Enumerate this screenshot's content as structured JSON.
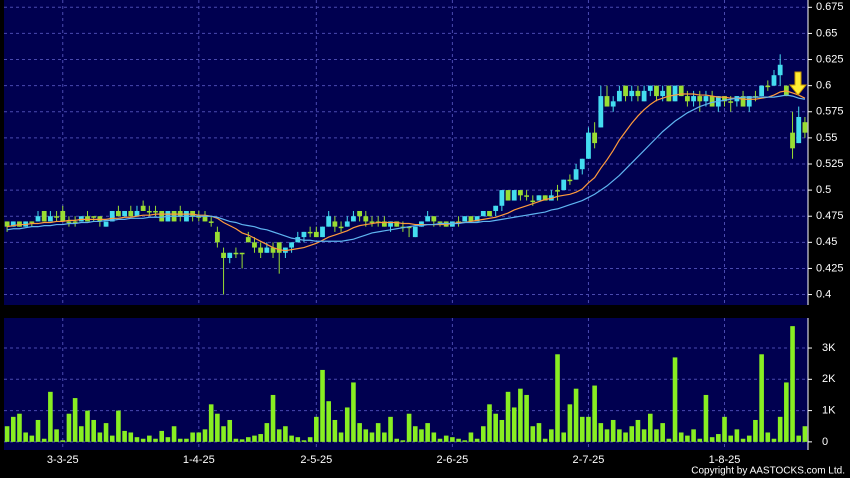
{
  "chart_data": {
    "type": "candlestick",
    "categories": [
      null,
      null,
      null,
      null,
      null,
      null,
      null,
      null,
      null,
      "3-3-25",
      null,
      null,
      null,
      null,
      null,
      null,
      null,
      null,
      null,
      null,
      null,
      null,
      null,
      null,
      null,
      null,
      null,
      null,
      null,
      null,
      null,
      "1-4-25",
      null,
      null,
      null,
      null,
      null,
      null,
      null,
      null,
      null,
      null,
      null,
      null,
      null,
      null,
      null,
      null,
      null,
      null,
      "2-5-25",
      null,
      null,
      null,
      null,
      null,
      null,
      null,
      null,
      null,
      null,
      null,
      null,
      null,
      null,
      null,
      null,
      null,
      null,
      null,
      null,
      null,
      "2-6-25",
      null,
      null,
      null,
      null,
      null,
      null,
      null,
      null,
      null,
      null,
      null,
      null,
      null,
      null,
      null,
      null,
      null,
      null,
      null,
      null,
      null,
      "2-7-25",
      null,
      null,
      null,
      null,
      null,
      null,
      null,
      null,
      null,
      null,
      null,
      null,
      null,
      null,
      null,
      null,
      null,
      null,
      null,
      null,
      null,
      "1-8-25",
      null,
      null,
      null,
      null,
      null,
      null,
      null,
      null,
      null,
      null,
      null,
      null,
      null
    ],
    "ohlc": [
      [
        0.47,
        0.47,
        0.46,
        0.465
      ],
      [
        0.465,
        0.47,
        0.465,
        0.47
      ],
      [
        0.47,
        0.47,
        0.465,
        0.465
      ],
      [
        0.465,
        0.47,
        0.465,
        0.47
      ],
      [
        0.47,
        0.47,
        0.465,
        0.47
      ],
      [
        0.47,
        0.48,
        0.47,
        0.475
      ],
      [
        0.48,
        0.48,
        0.47,
        0.47
      ],
      [
        0.47,
        0.48,
        0.47,
        0.475
      ],
      [
        0.475,
        0.48,
        0.47,
        0.475
      ],
      [
        0.48,
        0.485,
        0.47,
        0.47
      ],
      [
        0.47,
        0.475,
        0.465,
        0.47
      ],
      [
        0.47,
        0.475,
        0.465,
        0.47
      ],
      [
        0.47,
        0.475,
        0.47,
        0.475
      ],
      [
        0.475,
        0.48,
        0.47,
        0.47
      ],
      [
        0.475,
        0.475,
        0.47,
        0.475
      ],
      [
        0.475,
        0.475,
        0.465,
        0.47
      ],
      [
        0.465,
        0.47,
        0.465,
        0.47
      ],
      [
        0.47,
        0.48,
        0.47,
        0.48
      ],
      [
        0.48,
        0.485,
        0.475,
        0.475
      ],
      [
        0.475,
        0.48,
        0.475,
        0.48
      ],
      [
        0.48,
        0.485,
        0.475,
        0.475
      ],
      [
        0.475,
        0.485,
        0.475,
        0.48
      ],
      [
        0.485,
        0.49,
        0.48,
        0.48
      ],
      [
        0.48,
        0.485,
        0.475,
        0.48
      ],
      [
        0.48,
        0.485,
        0.475,
        0.48
      ],
      [
        0.48,
        0.48,
        0.47,
        0.47
      ],
      [
        0.47,
        0.48,
        0.47,
        0.48
      ],
      [
        0.48,
        0.48,
        0.47,
        0.47
      ],
      [
        0.48,
        0.485,
        0.47,
        0.475
      ],
      [
        0.47,
        0.48,
        0.47,
        0.48
      ],
      [
        0.48,
        0.48,
        0.47,
        0.475
      ],
      [
        0.475,
        0.48,
        0.47,
        0.475
      ],
      [
        0.475,
        0.48,
        0.47,
        0.47
      ],
      [
        0.47,
        0.475,
        0.465,
        0.47
      ],
      [
        0.46,
        0.465,
        0.445,
        0.45
      ],
      [
        0.44,
        0.445,
        0.4,
        0.435
      ],
      [
        0.435,
        0.44,
        0.43,
        0.44
      ],
      [
        0.44,
        0.445,
        0.435,
        0.44
      ],
      [
        0.44,
        0.44,
        0.425,
        0.44
      ],
      [
        0.455,
        0.46,
        0.45,
        0.45
      ],
      [
        0.45,
        0.455,
        0.44,
        0.445
      ],
      [
        0.445,
        0.45,
        0.435,
        0.44
      ],
      [
        0.44,
        0.45,
        0.44,
        0.445
      ],
      [
        0.445,
        0.45,
        0.435,
        0.44
      ],
      [
        0.45,
        0.45,
        0.42,
        0.44
      ],
      [
        0.44,
        0.445,
        0.435,
        0.445
      ],
      [
        0.445,
        0.45,
        0.44,
        0.45
      ],
      [
        0.45,
        0.46,
        0.45,
        0.455
      ],
      [
        0.455,
        0.46,
        0.45,
        0.46
      ],
      [
        0.46,
        0.465,
        0.455,
        0.46
      ],
      [
        0.46,
        0.465,
        0.455,
        0.455
      ],
      [
        0.455,
        0.465,
        0.455,
        0.465
      ],
      [
        0.465,
        0.48,
        0.465,
        0.475
      ],
      [
        0.47,
        0.475,
        0.46,
        0.465
      ],
      [
        0.465,
        0.47,
        0.46,
        0.465
      ],
      [
        0.465,
        0.475,
        0.465,
        0.47
      ],
      [
        0.47,
        0.48,
        0.47,
        0.475
      ],
      [
        0.48,
        0.48,
        0.47,
        0.475
      ],
      [
        0.475,
        0.48,
        0.465,
        0.47
      ],
      [
        0.47,
        0.475,
        0.465,
        0.47
      ],
      [
        0.47,
        0.475,
        0.465,
        0.47
      ],
      [
        0.47,
        0.475,
        0.465,
        0.465
      ],
      [
        0.465,
        0.47,
        0.46,
        0.47
      ],
      [
        0.47,
        0.47,
        0.465,
        0.465
      ],
      [
        0.465,
        0.47,
        0.46,
        0.465
      ],
      [
        0.465,
        0.465,
        0.455,
        0.465
      ],
      [
        0.455,
        0.465,
        0.455,
        0.465
      ],
      [
        0.465,
        0.47,
        0.465,
        0.47
      ],
      [
        0.47,
        0.48,
        0.47,
        0.475
      ],
      [
        0.475,
        0.475,
        0.465,
        0.47
      ],
      [
        0.47,
        0.47,
        0.465,
        0.47
      ],
      [
        0.47,
        0.47,
        0.465,
        0.465
      ],
      [
        0.465,
        0.47,
        0.465,
        0.47
      ],
      [
        0.47,
        0.475,
        0.465,
        0.47
      ],
      [
        0.47,
        0.475,
        0.47,
        0.475
      ],
      [
        0.475,
        0.475,
        0.47,
        0.47
      ],
      [
        0.47,
        0.475,
        0.47,
        0.475
      ],
      [
        0.475,
        0.48,
        0.475,
        0.48
      ],
      [
        0.48,
        0.48,
        0.475,
        0.475
      ],
      [
        0.48,
        0.485,
        0.475,
        0.485
      ],
      [
        0.485,
        0.5,
        0.48,
        0.5
      ],
      [
        0.5,
        0.5,
        0.49,
        0.49
      ],
      [
        0.49,
        0.5,
        0.49,
        0.5
      ],
      [
        0.5,
        0.5,
        0.49,
        0.495
      ],
      [
        0.495,
        0.5,
        0.49,
        0.495
      ],
      [
        0.49,
        0.495,
        0.485,
        0.49
      ],
      [
        0.49,
        0.495,
        0.49,
        0.495
      ],
      [
        0.495,
        0.495,
        0.49,
        0.49
      ],
      [
        0.49,
        0.5,
        0.49,
        0.495
      ],
      [
        0.5,
        0.505,
        0.49,
        0.5
      ],
      [
        0.5,
        0.51,
        0.5,
        0.51
      ],
      [
        0.51,
        0.515,
        0.505,
        0.51
      ],
      [
        0.51,
        0.525,
        0.51,
        0.52
      ],
      [
        0.52,
        0.53,
        0.515,
        0.53
      ],
      [
        0.53,
        0.56,
        0.53,
        0.555
      ],
      [
        0.555,
        0.565,
        0.54,
        0.545
      ],
      [
        0.56,
        0.6,
        0.56,
        0.59
      ],
      [
        0.59,
        0.6,
        0.58,
        0.58
      ],
      [
        0.58,
        0.59,
        0.575,
        0.585
      ],
      [
        0.585,
        0.6,
        0.585,
        0.595
      ],
      [
        0.6,
        0.6,
        0.585,
        0.59
      ],
      [
        0.59,
        0.6,
        0.585,
        0.595
      ],
      [
        0.595,
        0.6,
        0.585,
        0.59
      ],
      [
        0.585,
        0.6,
        0.585,
        0.595
      ],
      [
        0.595,
        0.6,
        0.59,
        0.6
      ],
      [
        0.6,
        0.6,
        0.585,
        0.59
      ],
      [
        0.59,
        0.6,
        0.585,
        0.595
      ],
      [
        0.6,
        0.6,
        0.585,
        0.585
      ],
      [
        0.585,
        0.6,
        0.585,
        0.6
      ],
      [
        0.6,
        0.6,
        0.59,
        0.59
      ],
      [
        0.59,
        0.595,
        0.58,
        0.585
      ],
      [
        0.585,
        0.595,
        0.58,
        0.59
      ],
      [
        0.59,
        0.595,
        0.575,
        0.585
      ],
      [
        0.585,
        0.595,
        0.58,
        0.59
      ],
      [
        0.59,
        0.595,
        0.58,
        0.58
      ],
      [
        0.58,
        0.59,
        0.575,
        0.59
      ],
      [
        0.59,
        0.59,
        0.58,
        0.585
      ],
      [
        0.585,
        0.59,
        0.575,
        0.585
      ],
      [
        0.585,
        0.59,
        0.58,
        0.59
      ],
      [
        0.59,
        0.595,
        0.58,
        0.58
      ],
      [
        0.58,
        0.59,
        0.575,
        0.59
      ],
      [
        0.59,
        0.595,
        0.585,
        0.59
      ],
      [
        0.59,
        0.6,
        0.59,
        0.6
      ],
      [
        0.6,
        0.605,
        0.595,
        0.6
      ],
      [
        0.6,
        0.615,
        0.6,
        0.61
      ],
      [
        0.61,
        0.63,
        0.6,
        0.62
      ],
      [
        0.6,
        0.6,
        0.59,
        0.59
      ],
      [
        0.555,
        0.575,
        0.53,
        0.54
      ],
      [
        0.545,
        0.58,
        0.545,
        0.57
      ],
      [
        0.565,
        0.57,
        0.55,
        0.555
      ]
    ],
    "up_color": "#44ddf0",
    "down_color": "#99dd33",
    "ylim": [
      0.39,
      0.682
    ],
    "yticks": [
      0.4,
      0.425,
      0.45,
      0.475,
      0.5,
      0.525,
      0.55,
      0.575,
      0.6,
      0.625,
      0.65,
      0.675
    ],
    "grid": true,
    "lines": [
      {
        "color": "#ff9a3c",
        "values": [
          0.465,
          0.466,
          0.467,
          0.467,
          0.468,
          0.468,
          0.469,
          0.469,
          0.47,
          0.47,
          0.471,
          0.471,
          0.472,
          0.472,
          0.472,
          0.472,
          0.472,
          0.473,
          0.473,
          0.474,
          0.474,
          0.475,
          0.476,
          0.476,
          0.477,
          0.477,
          0.477,
          0.477,
          0.477,
          0.477,
          0.477,
          0.476,
          0.476,
          0.475,
          0.473,
          0.469,
          0.466,
          0.463,
          0.459,
          0.457,
          0.454,
          0.451,
          0.448,
          0.445,
          0.443,
          0.442,
          0.443,
          0.444,
          0.445,
          0.447,
          0.449,
          0.452,
          0.455,
          0.457,
          0.459,
          0.461,
          0.464,
          0.466,
          0.467,
          0.468,
          0.469,
          0.469,
          0.469,
          0.469,
          0.468,
          0.468,
          0.467,
          0.467,
          0.467,
          0.467,
          0.467,
          0.467,
          0.468,
          0.469,
          0.469,
          0.47,
          0.471,
          0.472,
          0.473,
          0.474,
          0.476,
          0.478,
          0.481,
          0.483,
          0.485,
          0.487,
          0.489,
          0.491,
          0.492,
          0.494,
          0.495,
          0.496,
          0.498,
          0.501,
          0.507,
          0.512,
          0.521,
          0.529,
          0.538,
          0.548,
          0.556,
          0.564,
          0.571,
          0.577,
          0.582,
          0.586,
          0.588,
          0.59,
          0.591,
          0.592,
          0.592,
          0.592,
          0.591,
          0.591,
          0.59,
          0.589,
          0.589,
          0.588,
          0.588,
          0.587,
          0.587,
          0.587,
          0.588,
          0.589,
          0.591,
          0.594,
          0.595,
          0.593,
          0.591,
          0.588
        ]
      },
      {
        "color": "#5fb4f0",
        "values": [
          0.462,
          0.463,
          0.463,
          0.464,
          0.465,
          0.465,
          0.466,
          0.466,
          0.467,
          0.467,
          0.468,
          0.468,
          0.469,
          0.469,
          0.47,
          0.47,
          0.471,
          0.471,
          0.472,
          0.472,
          0.473,
          0.473,
          0.473,
          0.474,
          0.474,
          0.474,
          0.475,
          0.475,
          0.475,
          0.475,
          0.475,
          0.475,
          0.475,
          0.475,
          0.474,
          0.472,
          0.47,
          0.469,
          0.467,
          0.466,
          0.465,
          0.463,
          0.462,
          0.46,
          0.458,
          0.456,
          0.454,
          0.453,
          0.452,
          0.452,
          0.451,
          0.451,
          0.451,
          0.451,
          0.451,
          0.452,
          0.453,
          0.455,
          0.457,
          0.459,
          0.46,
          0.461,
          0.462,
          0.463,
          0.464,
          0.465,
          0.466,
          0.466,
          0.467,
          0.467,
          0.468,
          0.468,
          0.468,
          0.468,
          0.469,
          0.469,
          0.469,
          0.47,
          0.47,
          0.471,
          0.472,
          0.473,
          0.474,
          0.475,
          0.476,
          0.477,
          0.478,
          0.479,
          0.481,
          0.482,
          0.484,
          0.486,
          0.488,
          0.49,
          0.493,
          0.496,
          0.5,
          0.504,
          0.509,
          0.514,
          0.52,
          0.526,
          0.532,
          0.538,
          0.544,
          0.55,
          0.556,
          0.561,
          0.566,
          0.57,
          0.574,
          0.577,
          0.58,
          0.582,
          0.584,
          0.585,
          0.586,
          0.587,
          0.588,
          0.589,
          0.589,
          0.589,
          0.589,
          0.589,
          0.589,
          0.59,
          0.591,
          0.59,
          0.588,
          0.587
        ]
      }
    ],
    "volume": {
      "color": "#88ee22",
      "values": [
        500,
        800,
        900,
        300,
        200,
        700,
        100,
        1600,
        400,
        50,
        900,
        1400,
        500,
        1000,
        700,
        300,
        600,
        200,
        1000,
        350,
        300,
        150,
        100,
        200,
        100,
        350,
        150,
        500,
        100,
        100,
        300,
        300,
        400,
        1200,
        900,
        500,
        700,
        100,
        80,
        150,
        200,
        250,
        600,
        1500,
        400,
        500,
        200,
        150,
        50,
        150,
        800,
        2300,
        1300,
        700,
        300,
        1100,
        1900,
        600,
        400,
        300,
        600,
        300,
        800,
        100,
        50,
        900,
        500,
        400,
        600,
        300,
        100,
        200,
        150,
        100,
        50,
        300,
        100,
        500,
        1200,
        900,
        700,
        1600,
        1100,
        1700,
        1500,
        500,
        600,
        100,
        400,
        2800,
        300,
        1200,
        1700,
        800,
        800,
        1800,
        600,
        400,
        700,
        400,
        300,
        500,
        700,
        400,
        900,
        400,
        600,
        100,
        2700,
        300,
        200,
        400,
        100,
        1500,
        150,
        250,
        800,
        200,
        400,
        100,
        200,
        700,
        2800,
        300,
        100,
        800,
        1900,
        3700,
        200,
        500
      ],
      "ylim": [
        -260,
        3960
      ],
      "yticks": [
        0,
        {
          "value": 1000,
          "label": "1K"
        },
        {
          "value": 2000,
          "label": "2K"
        },
        {
          "value": 3000,
          "label": "3K"
        }
      ]
    },
    "copyright": "Copyright by AASTOCKS.com Ltd."
  }
}
